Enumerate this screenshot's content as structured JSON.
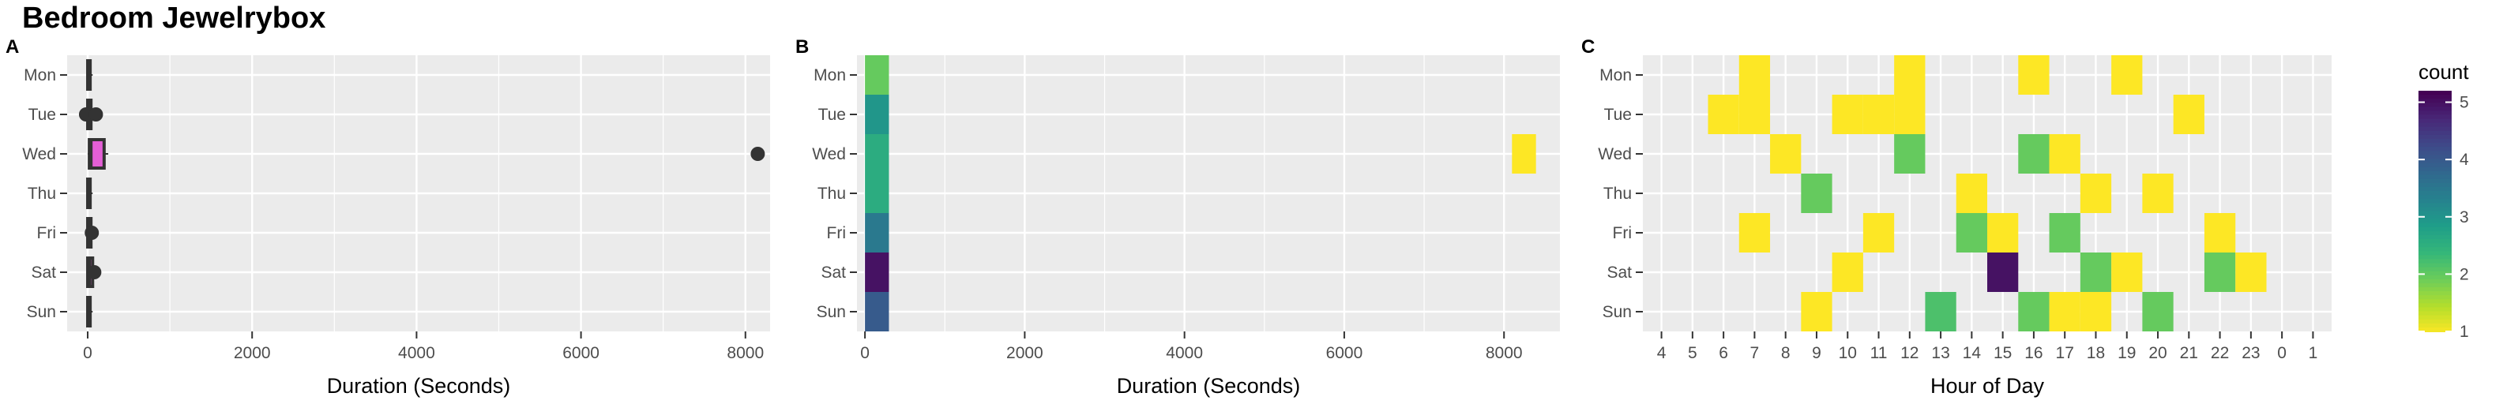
{
  "title": "Bedroom Jewelrybox",
  "colors": {
    "panel_bg": "#EBEBEB",
    "grid": "#FFFFFF",
    "tick_text": "#4D4D4D",
    "box_fill": "#E45FD6",
    "point": "#333333",
    "scale_low": "#FDE725",
    "scale_high": "#440154"
  },
  "chart_data": [
    {
      "panel": "A",
      "type": "box",
      "xlabel": "Duration (Seconds)",
      "ylabel": "",
      "categories": [
        "Mon",
        "Tue",
        "Wed",
        "Thu",
        "Fri",
        "Sat",
        "Sun"
      ],
      "xlim": [
        -250,
        8300
      ],
      "x_ticks": [
        0,
        2000,
        4000,
        6000,
        8000
      ],
      "grid": true,
      "boxes": [
        {
          "day": "Mon",
          "q1": 0,
          "median": 10,
          "q3": 30,
          "whisker_low": 0,
          "whisker_high": 60,
          "outliers": []
        },
        {
          "day": "Tue",
          "q1": 0,
          "median": 10,
          "q3": 40,
          "whisker_low": 0,
          "whisker_high": 60,
          "outliers": [
            -20,
            100
          ]
        },
        {
          "day": "Wed",
          "q1": 20,
          "median": 40,
          "q3": 200,
          "whisker_low": 0,
          "whisker_high": 250,
          "outliers": [
            8150
          ]
        },
        {
          "day": "Thu",
          "q1": 0,
          "median": 10,
          "q3": 30,
          "whisker_low": 0,
          "whisker_high": 60,
          "outliers": []
        },
        {
          "day": "Fri",
          "q1": 0,
          "median": 10,
          "q3": 40,
          "whisker_low": 0,
          "whisker_high": 70,
          "outliers": [
            50
          ]
        },
        {
          "day": "Sat",
          "q1": 0,
          "median": 20,
          "q3": 60,
          "whisker_low": 0,
          "whisker_high": 90,
          "outliers": [
            80
          ]
        },
        {
          "day": "Sun",
          "q1": 0,
          "median": 10,
          "q3": 30,
          "whisker_low": 0,
          "whisker_high": 60,
          "outliers": []
        }
      ]
    },
    {
      "panel": "B",
      "type": "heatmap",
      "xlabel": "Duration (Seconds)",
      "ylabel": "",
      "categories": [
        "Mon",
        "Tue",
        "Wed",
        "Thu",
        "Fri",
        "Sat",
        "Sun"
      ],
      "xlim": [
        -100,
        8700
      ],
      "x_ticks": [
        0,
        2000,
        4000,
        6000,
        8000
      ],
      "bin_width": 300,
      "grid": true,
      "cells": [
        {
          "day": "Mon",
          "x": 0,
          "count": 2
        },
        {
          "day": "Tue",
          "x": 0,
          "count": 3
        },
        {
          "day": "Wed",
          "x": 0,
          "count": 2.6
        },
        {
          "day": "Thu",
          "x": 0,
          "count": 2.6
        },
        {
          "day": "Fri",
          "x": 0,
          "count": 3.5
        },
        {
          "day": "Sat",
          "x": 0,
          "count": 5
        },
        {
          "day": "Sun",
          "x": 0,
          "count": 4
        },
        {
          "day": "Wed",
          "x": 8100,
          "count": 1
        }
      ]
    },
    {
      "panel": "C",
      "type": "heatmap",
      "xlabel": "Hour of Day",
      "ylabel": "",
      "categories": [
        "Mon",
        "Tue",
        "Wed",
        "Thu",
        "Fri",
        "Sat",
        "Sun"
      ],
      "x_ticks": [
        "4",
        "5",
        "6",
        "7",
        "8",
        "9",
        "10",
        "11",
        "12",
        "13",
        "14",
        "15",
        "16",
        "17",
        "18",
        "19",
        "20",
        "21",
        "22",
        "23",
        "0",
        "1"
      ],
      "grid": true,
      "cells": [
        {
          "day": "Mon",
          "hour": "7",
          "count": 1
        },
        {
          "day": "Mon",
          "hour": "12",
          "count": 1
        },
        {
          "day": "Mon",
          "hour": "16",
          "count": 1
        },
        {
          "day": "Mon",
          "hour": "19",
          "count": 1
        },
        {
          "day": "Tue",
          "hour": "6",
          "count": 1
        },
        {
          "day": "Tue",
          "hour": "7",
          "count": 1
        },
        {
          "day": "Tue",
          "hour": "10",
          "count": 1
        },
        {
          "day": "Tue",
          "hour": "11",
          "count": 1
        },
        {
          "day": "Tue",
          "hour": "12",
          "count": 1
        },
        {
          "day": "Tue",
          "hour": "21",
          "count": 1
        },
        {
          "day": "Wed",
          "hour": "8",
          "count": 1
        },
        {
          "day": "Wed",
          "hour": "12",
          "count": 2
        },
        {
          "day": "Wed",
          "hour": "16",
          "count": 2
        },
        {
          "day": "Wed",
          "hour": "17",
          "count": 1
        },
        {
          "day": "Thu",
          "hour": "9",
          "count": 2
        },
        {
          "day": "Thu",
          "hour": "14",
          "count": 1
        },
        {
          "day": "Thu",
          "hour": "18",
          "count": 1
        },
        {
          "day": "Thu",
          "hour": "20",
          "count": 1
        },
        {
          "day": "Fri",
          "hour": "7",
          "count": 1
        },
        {
          "day": "Fri",
          "hour": "11",
          "count": 1
        },
        {
          "day": "Fri",
          "hour": "14",
          "count": 2
        },
        {
          "day": "Fri",
          "hour": "15",
          "count": 1
        },
        {
          "day": "Fri",
          "hour": "17",
          "count": 2
        },
        {
          "day": "Fri",
          "hour": "22",
          "count": 1
        },
        {
          "day": "Sat",
          "hour": "10",
          "count": 1
        },
        {
          "day": "Sat",
          "hour": "15",
          "count": 5
        },
        {
          "day": "Sat",
          "hour": "18",
          "count": 2
        },
        {
          "day": "Sat",
          "hour": "19",
          "count": 1
        },
        {
          "day": "Sat",
          "hour": "22",
          "count": 2
        },
        {
          "day": "Sat",
          "hour": "23",
          "count": 1
        },
        {
          "day": "Sun",
          "hour": "9",
          "count": 1
        },
        {
          "day": "Sun",
          "hour": "13",
          "count": 2.2
        },
        {
          "day": "Sun",
          "hour": "16",
          "count": 2
        },
        {
          "day": "Sun",
          "hour": "17",
          "count": 1
        },
        {
          "day": "Sun",
          "hour": "18",
          "count": 1
        },
        {
          "day": "Sun",
          "hour": "20",
          "count": 2
        }
      ]
    }
  ],
  "legend": {
    "title": "count",
    "min": 1,
    "max": 5.2,
    "ticks": [
      1,
      2,
      3,
      4,
      5
    ],
    "placement": "right"
  }
}
